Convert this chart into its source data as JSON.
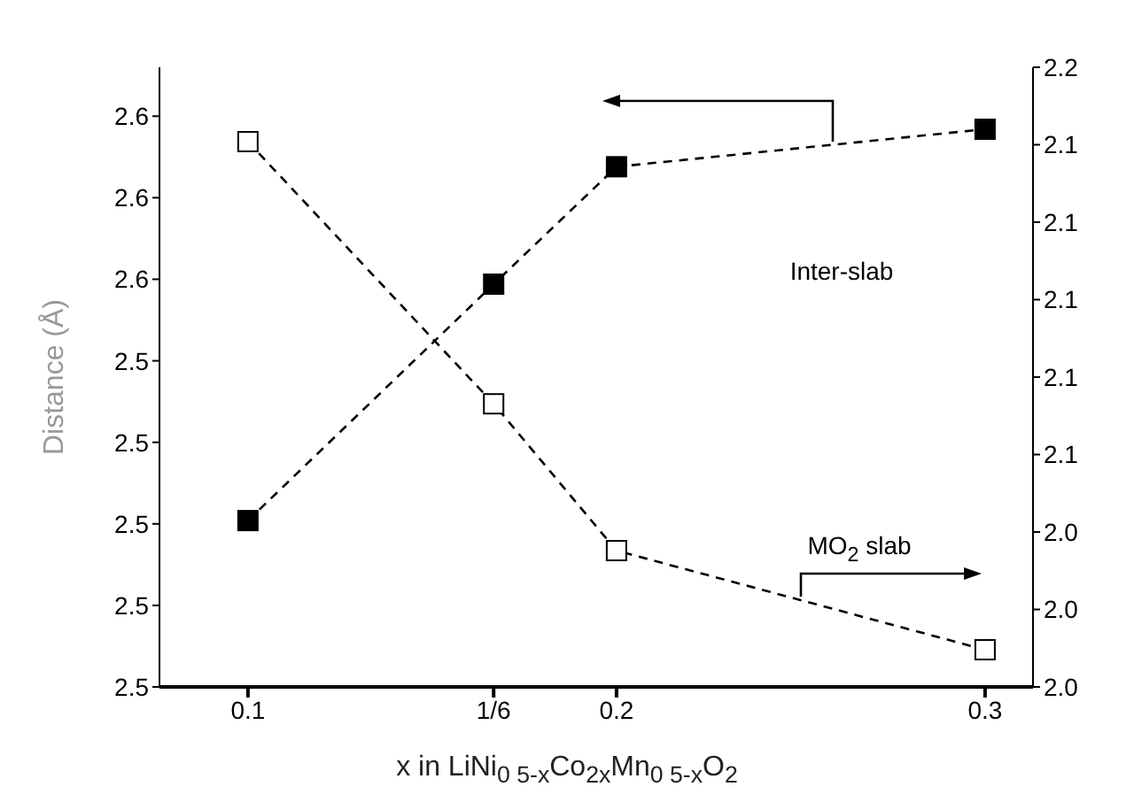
{
  "chart_data": {
    "type": "line",
    "xlabel": "x in LiNi$_{0 5-x}$Co$_{2x}$Mn$_{0 5-x}$O$_{2}$",
    "ylabel": "Distance (Å)",
    "x": [
      0.1,
      0.16667,
      0.2,
      0.3
    ],
    "series": [
      {
        "color": "#000000",
        "values": [
          2.5402,
          2.5547,
          2.5619,
          2.5642
        ],
        "marker": "square",
        "line_style": "dashed"
      },
      {
        "color": "#000000",
        "values": [
          2.1408,
          2.0731,
          2.0352,
          2.0096
        ],
        "marker": "square",
        "line_style": "dashed",
        "axis": "y2"
      }
    ],
    "xlim": [
      0.076,
      0.313
    ],
    "xticks": [
      0.1,
      {
        "value": 0.16667,
        "label": "1/6"
      },
      0.2,
      0.3
    ],
    "ylim": [
      2.53,
      2.568
    ],
    "yticks": [
      {
        "value": 2.53,
        "label": "2.5"
      },
      {
        "value": 2.535,
        "label": "2.5"
      },
      {
        "value": 2.54,
        "label": "2.5"
      },
      {
        "value": 2.545,
        "label": "2.5"
      },
      {
        "value": 2.55,
        "label": "2.5"
      },
      {
        "value": 2.555,
        "label": "2.6"
      },
      {
        "value": 2.56,
        "label": "2.6"
      },
      {
        "value": 2.565,
        "label": "2.6"
      }
    ],
    "y2lim": [
      2.0,
      2.16
    ],
    "y2ticks": [
      {
        "value": 2.0,
        "label": "2.0"
      },
      {
        "value": 2.02,
        "label": "2.0"
      },
      {
        "value": 2.04,
        "label": "2.0"
      },
      {
        "value": 2.06,
        "label": "2.1"
      },
      {
        "value": 2.08,
        "label": "2.1"
      },
      {
        "value": 2.1,
        "label": "2.1"
      },
      {
        "value": 2.12,
        "label": "2.1"
      },
      {
        "value": 2.14,
        "label": "2.1"
      },
      {
        "value": 2.16,
        "label": "2.2"
      }
    ],
    "annotations": [
      "Inter-slab",
      "MO$_{2}$ slab"
    ],
    "grid": false,
    "legend": false
  }
}
